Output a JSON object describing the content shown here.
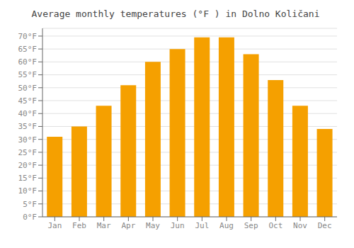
{
  "chart_data": {
    "type": "bar",
    "title": "Average monthly temperatures (°F ) in Dolno Količani",
    "categories": [
      "Jan",
      "Feb",
      "Mar",
      "Apr",
      "May",
      "Jun",
      "Jul",
      "Aug",
      "Sep",
      "Oct",
      "Nov",
      "Dec"
    ],
    "values": [
      31,
      35,
      43,
      51,
      60,
      65,
      69.5,
      69.5,
      63,
      53,
      43,
      34
    ],
    "color": "#F5A000",
    "ylim": [
      0,
      73
    ],
    "yticks": [
      {
        "value": 0,
        "label": "0°F"
      },
      {
        "value": 5,
        "label": "5°F"
      },
      {
        "value": 10,
        "label": "10°F"
      },
      {
        "value": 15,
        "label": "15°F"
      },
      {
        "value": 20,
        "label": "20°F"
      },
      {
        "value": 25,
        "label": "25°F"
      },
      {
        "value": 30,
        "label": "30°F"
      },
      {
        "value": 35,
        "label": "35°F"
      },
      {
        "value": 40,
        "label": "40°F"
      },
      {
        "value": 45,
        "label": "45°F"
      },
      {
        "value": 50,
        "label": "50°F"
      },
      {
        "value": 55,
        "label": "55°F"
      },
      {
        "value": 60,
        "label": "60°F"
      },
      {
        "value": 65,
        "label": "65°F"
      },
      {
        "value": 70,
        "label": "70°F"
      }
    ],
    "grid": true
  }
}
